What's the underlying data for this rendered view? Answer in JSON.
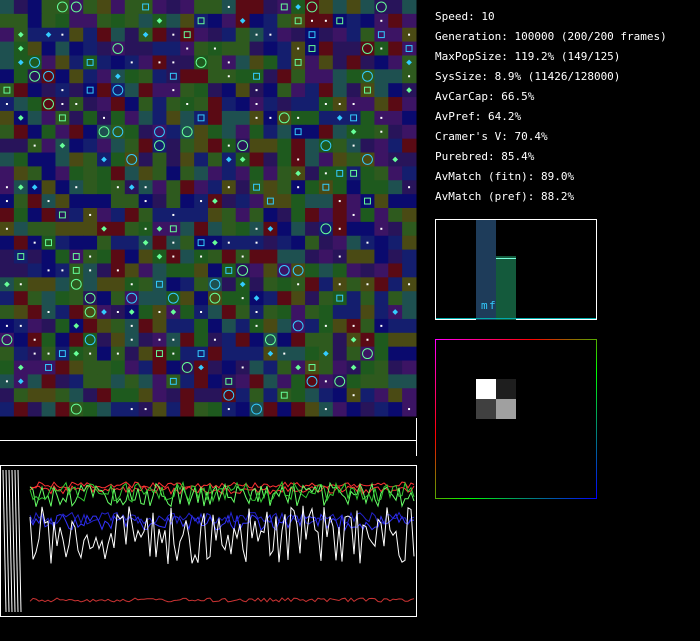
{
  "stats": [
    "Speed: 10",
    "Generation: 100000 (200/200 frames)",
    "MaxPopSize: 119.2% (149/125)",
    "SysSize: 8.9% (11426/128000)",
    "AvCarCap: 66.5%",
    "AvPref: 64.2%",
    "Cramer's V: 70.4%",
    "Purebred: 85.4%",
    "AvMatch (fitn): 89.0%",
    "AvMatch (pref): 88.2%"
  ],
  "histogram": {
    "labels": [
      "m",
      "f"
    ]
  }
}
